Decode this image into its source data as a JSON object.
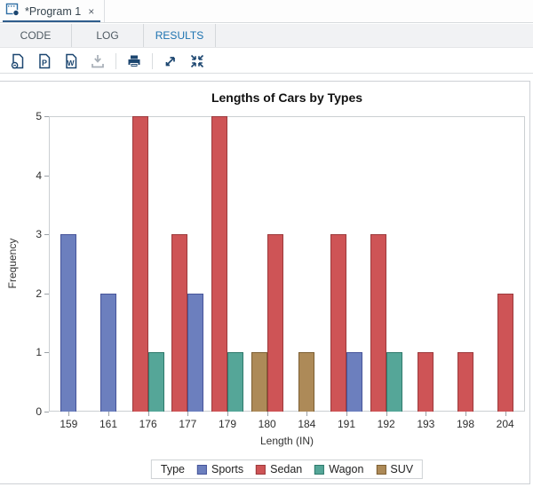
{
  "window": {
    "tab_title": "*Program 1",
    "close_glyph": "×"
  },
  "tabs": [
    {
      "label": "CODE",
      "active": false
    },
    {
      "label": "LOG",
      "active": false
    },
    {
      "label": "RESULTS",
      "active": true
    }
  ],
  "toolbar": {
    "icon_names": [
      "html-results-icon",
      "pdf-results-icon",
      "word-results-icon",
      "download-icon",
      "print-icon",
      "open-new-window-icon",
      "collapse-icon"
    ],
    "icon_color": "#1c4670",
    "disabled_icon_color": "#a7afb7"
  },
  "chart_data": {
    "type": "bar",
    "title": "Lengths of Cars by Types",
    "xlabel": "Length (IN)",
    "ylabel": "Frequency",
    "ylim": [
      0,
      5
    ],
    "yticks": [
      0,
      1,
      2,
      3,
      4,
      5
    ],
    "grid": false,
    "legend_position": "bottom",
    "legend_title": "Type",
    "categories": [
      "159",
      "161",
      "176",
      "177",
      "179",
      "180",
      "184",
      "191",
      "192",
      "193",
      "198",
      "204"
    ],
    "series": [
      {
        "name": "Sports",
        "fill": "#6c7fbe",
        "border": "#46549a"
      },
      {
        "name": "Sedan",
        "fill": "#ce5456",
        "border": "#9c3a3c"
      },
      {
        "name": "Wagon",
        "fill": "#55a698",
        "border": "#2f7a6c"
      },
      {
        "name": "SUV",
        "fill": "#ad8a58",
        "border": "#7d5f33"
      }
    ],
    "clusters": [
      [
        {
          "series": "Sports",
          "value": 3
        }
      ],
      [
        {
          "series": "Sports",
          "value": 2
        }
      ],
      [
        {
          "series": "Sedan",
          "value": 5
        },
        {
          "series": "Wagon",
          "value": 1
        }
      ],
      [
        {
          "series": "Sedan",
          "value": 3
        },
        {
          "series": "Sports",
          "value": 2
        }
      ],
      [
        {
          "series": "Sedan",
          "value": 5
        },
        {
          "series": "Wagon",
          "value": 1
        }
      ],
      [
        {
          "series": "SUV",
          "value": 1
        },
        {
          "series": "Sedan",
          "value": 3
        }
      ],
      [
        {
          "series": "SUV",
          "value": 1
        }
      ],
      [
        {
          "series": "Sedan",
          "value": 3
        },
        {
          "series": "Sports",
          "value": 1
        }
      ],
      [
        {
          "series": "Sedan",
          "value": 3
        },
        {
          "series": "Wagon",
          "value": 1
        }
      ],
      [
        {
          "series": "Sedan",
          "value": 1
        }
      ],
      [
        {
          "series": "Sedan",
          "value": 1
        }
      ],
      [
        {
          "series": "Sedan",
          "value": 2
        }
      ]
    ]
  }
}
